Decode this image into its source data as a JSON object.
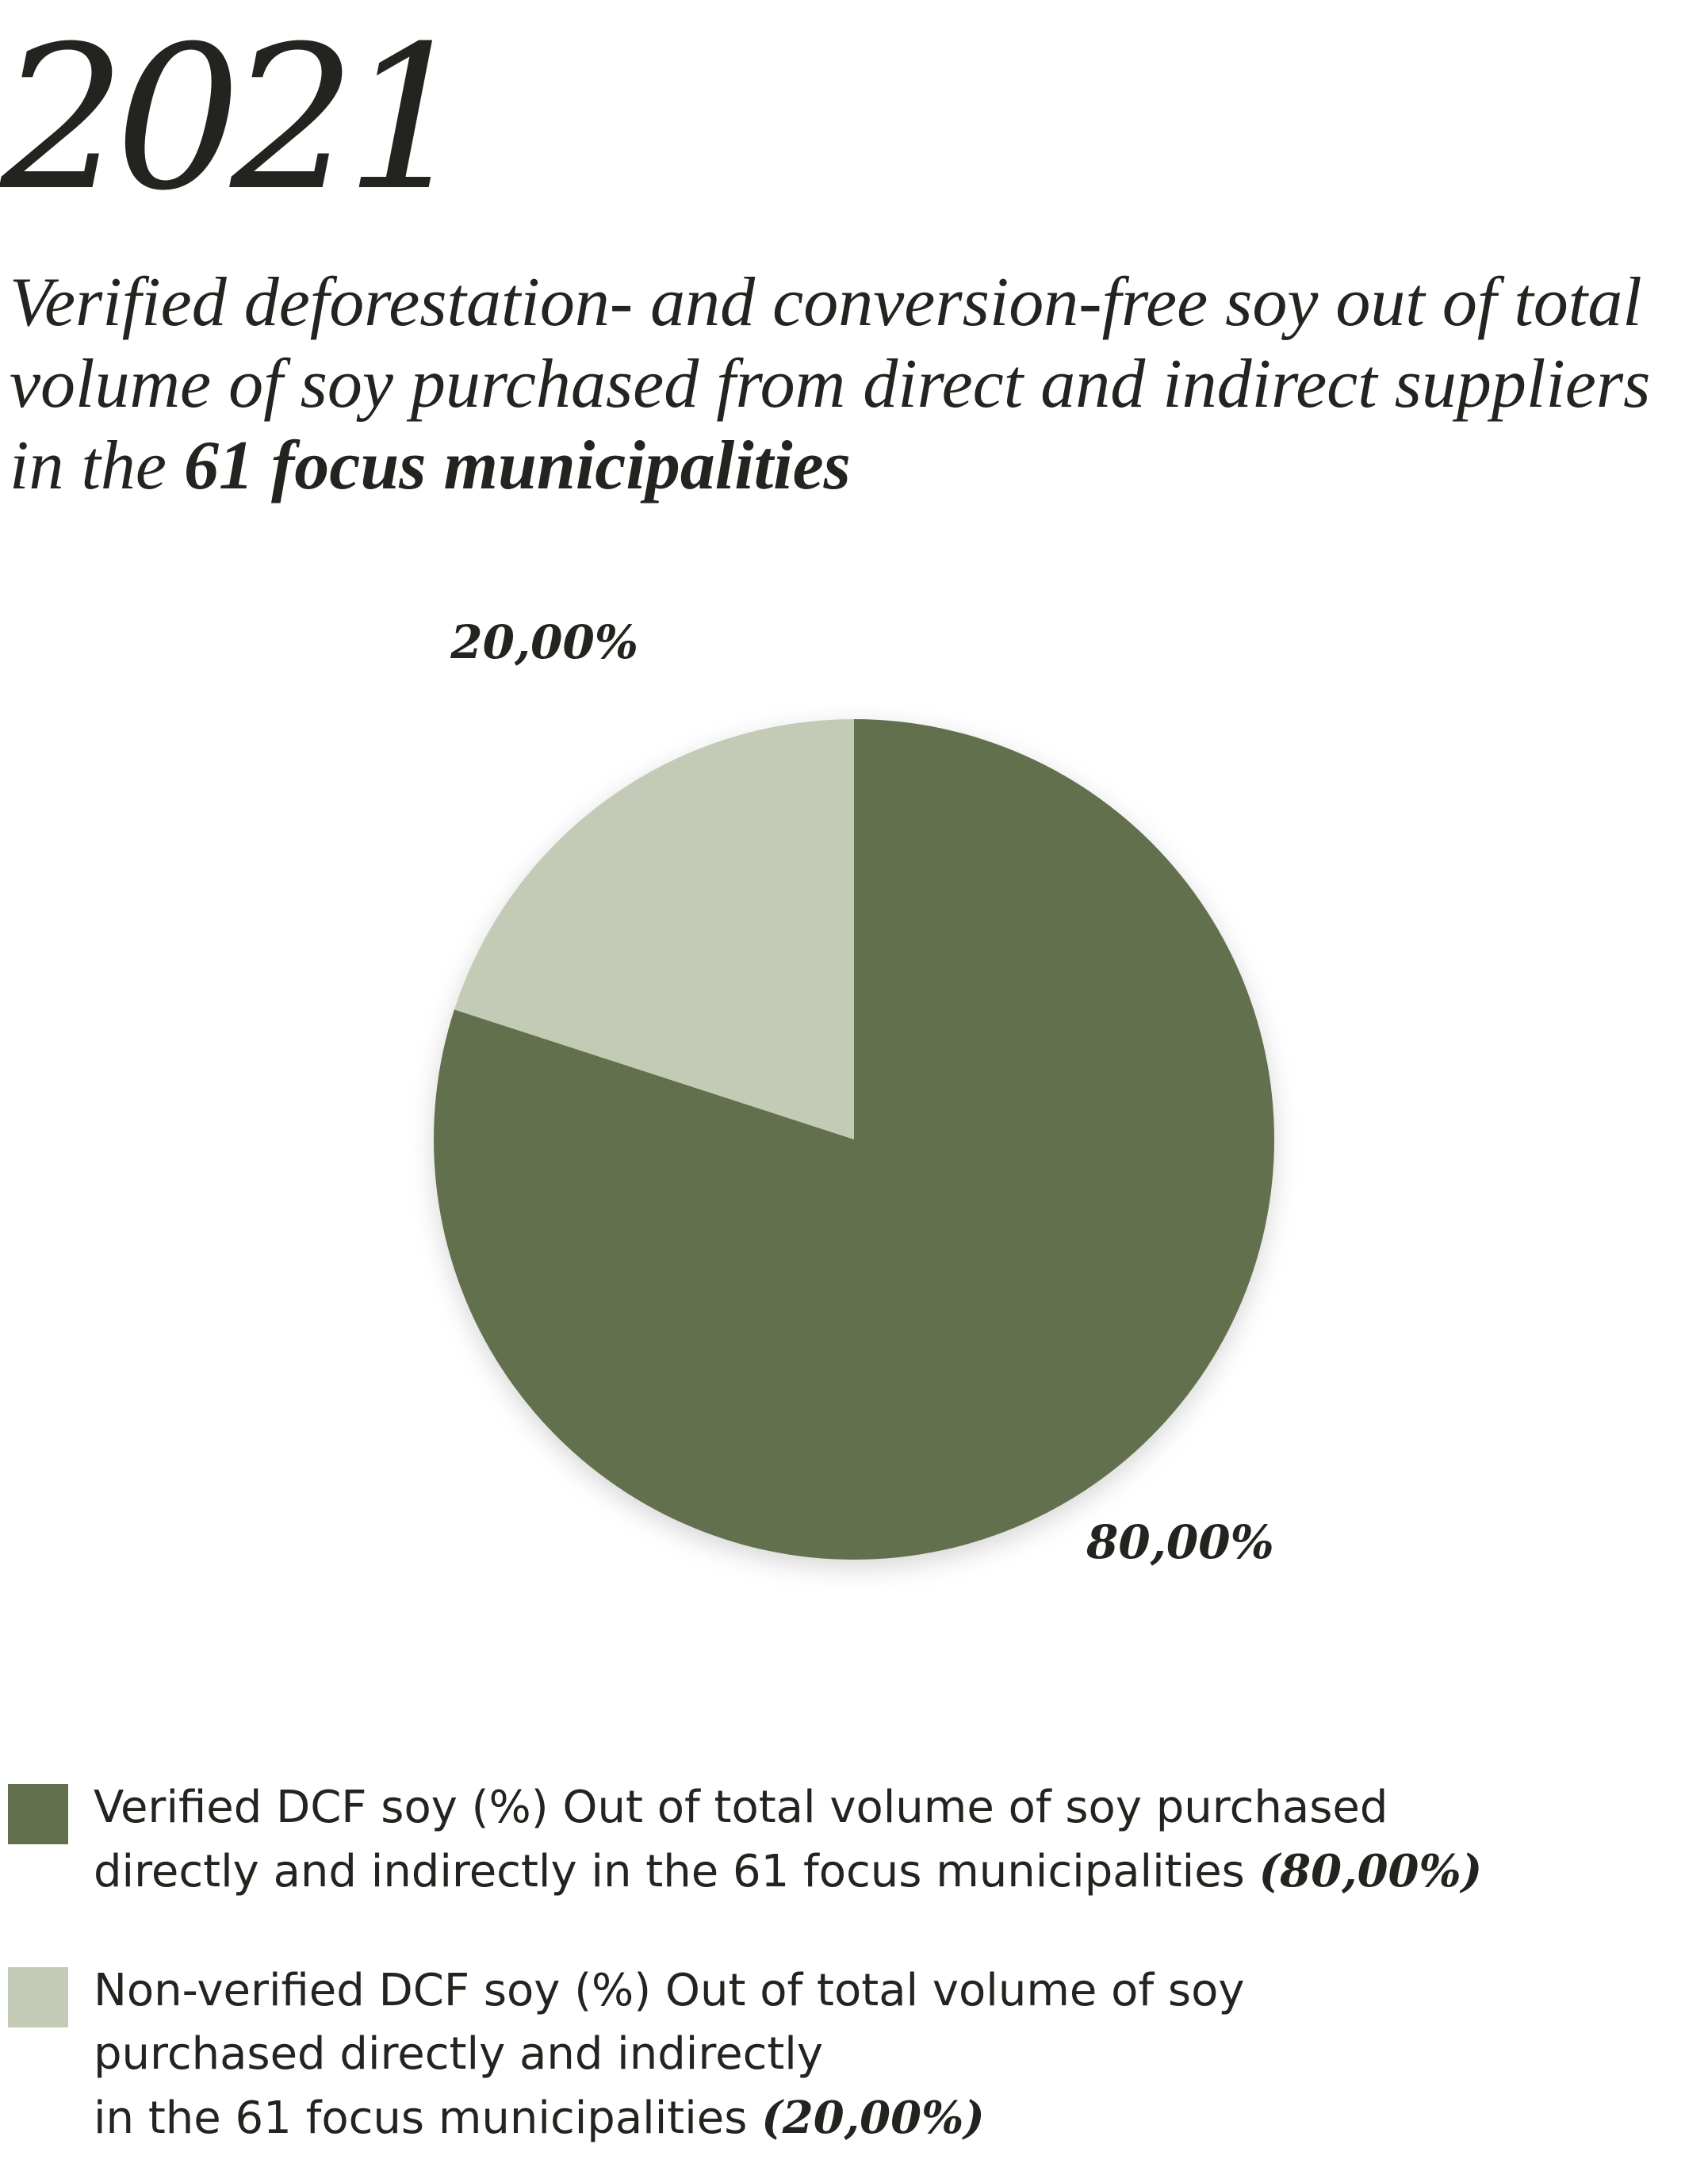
{
  "header": {
    "year": "2021",
    "title_part1": "Verified deforestation- and conversion-free soy out of total volume of soy purchased from direct and indirect suppliers in the",
    "title_bold": "61 focus municipalities"
  },
  "chart_data": {
    "type": "pie",
    "title": "Verified deforestation- and conversion-free soy out of total volume of soy purchased from direct and indirect suppliers in the 61 focus municipalities",
    "slices": [
      {
        "name": "Verified DCF soy (%) Out of total volume of soy purchased directly and indirectly in the 61 focus municipalities",
        "value": 80.0,
        "label": "80,00%",
        "color": "#62704d"
      },
      {
        "name": "Non-verified DCF soy (%) Out of total volume of soy purchased directly and indirectly in the 61 focus municipalities",
        "value": 20.0,
        "label": "20,00%",
        "color": "#c3cbb6"
      }
    ],
    "legend_position": "bottom"
  },
  "legend": {
    "items": [
      {
        "lines": [
          "Verified DCF soy (%) Out of total volume of soy purchased",
          "directly and indirectly in the 61 focus municipalities"
        ],
        "value_text": "(80,00%)"
      },
      {
        "lines": [
          "Non-verified DCF soy (%) Out of total volume of soy",
          "purchased directly and indirectly",
          "in the 61 focus municipalities"
        ],
        "value_text": "(20,00%)"
      }
    ]
  }
}
